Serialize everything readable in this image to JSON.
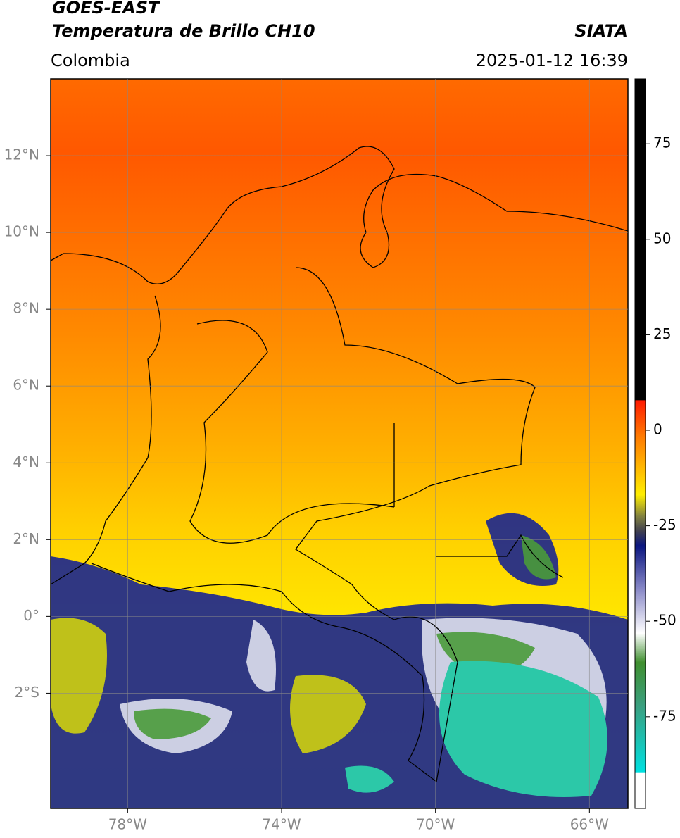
{
  "header": {
    "title": "GOES-EAST",
    "subtitle": "Temperatura de Brillo CH10",
    "region": "Colombia",
    "source": "SIATA",
    "timestamp": "2025-01-12 16:39"
  },
  "map": {
    "xlim": [
      -80,
      -65
    ],
    "ylim": [
      -5,
      14
    ],
    "xticks": [
      {
        "value": -78,
        "label": "78°W"
      },
      {
        "value": -74,
        "label": "74°W"
      },
      {
        "value": -70,
        "label": "70°W"
      },
      {
        "value": -66,
        "label": "66°W"
      }
    ],
    "yticks": [
      {
        "value": 12,
        "label": "12°N"
      },
      {
        "value": 10,
        "label": "10°N"
      },
      {
        "value": 8,
        "label": "8°N"
      },
      {
        "value": 6,
        "label": "6°N"
      },
      {
        "value": 4,
        "label": "4°N"
      },
      {
        "value": 2,
        "label": "2°N"
      },
      {
        "value": 0,
        "label": "0°"
      },
      {
        "value": -2,
        "label": "2°S"
      }
    ],
    "grid": true
  },
  "colorbar": {
    "lim": [
      -99,
      92
    ],
    "ticks": [
      75,
      50,
      25,
      0,
      -25,
      -50,
      -75
    ]
  }
}
